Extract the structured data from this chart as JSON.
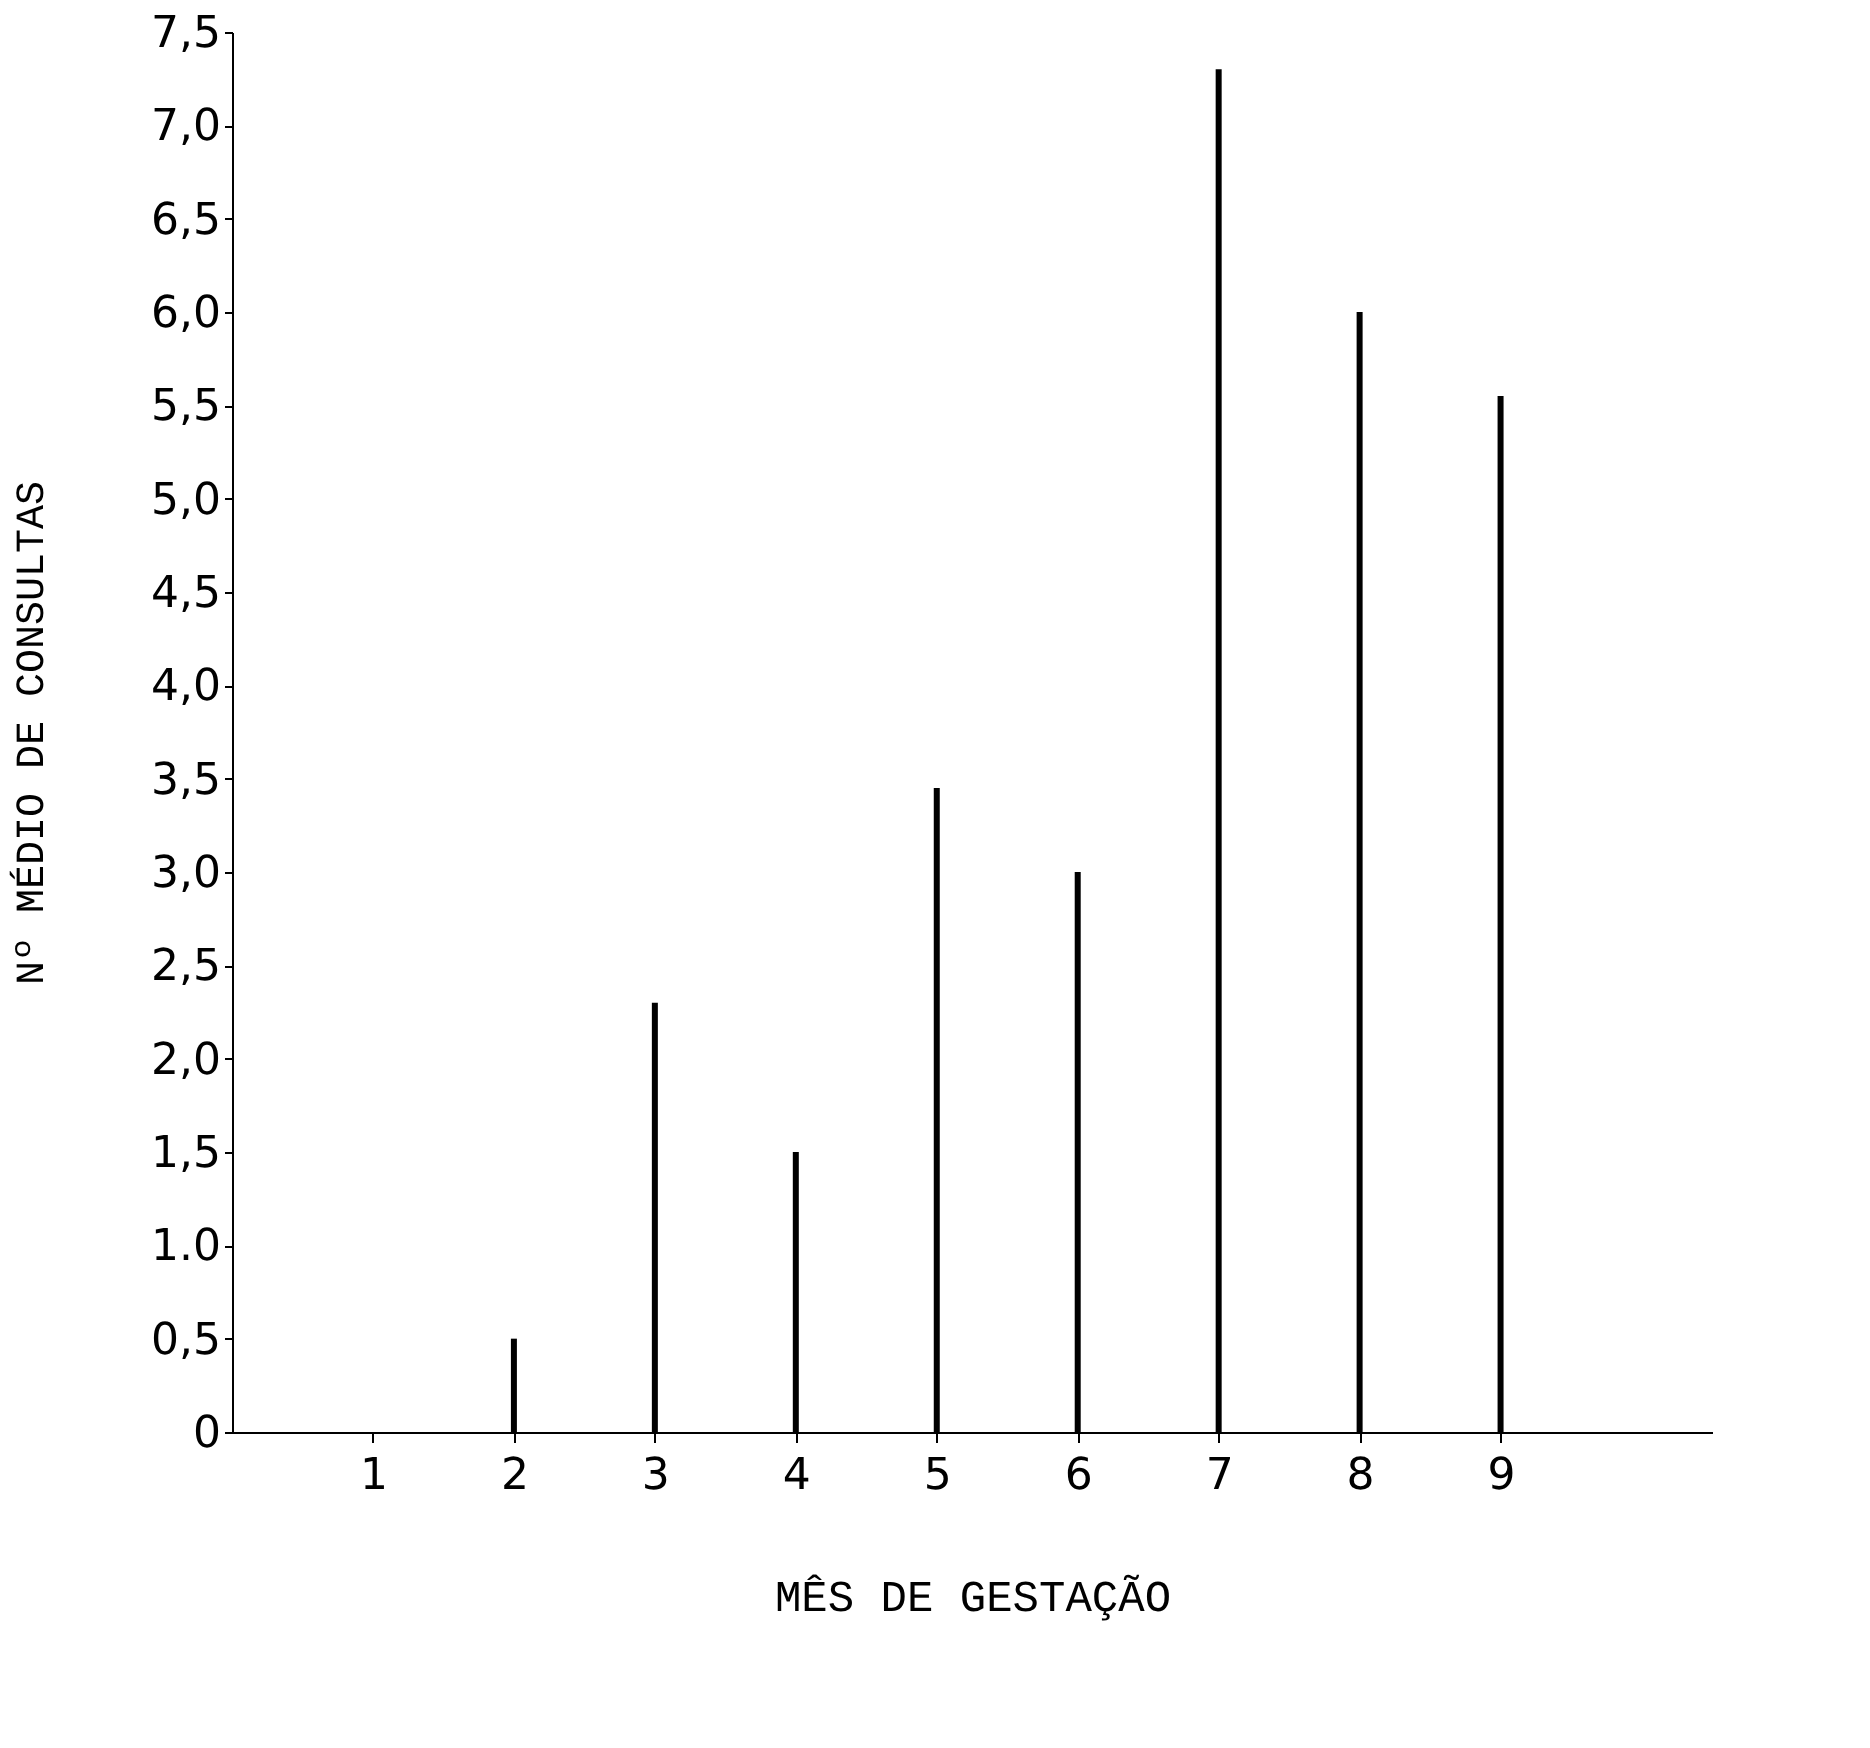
{
  "chart_data": {
    "type": "bar",
    "xlabel": "MÊS DE GESTAÇÃO",
    "ylabel": "Nº MÉDIO DE CONSULTAS",
    "x": [
      1,
      2,
      3,
      4,
      5,
      6,
      7,
      8,
      9
    ],
    "series": [
      {
        "color": "#000000",
        "values": [
          0,
          0.5,
          2.3,
          1.5,
          3.45,
          3.0,
          7.3,
          6.0,
          5.55
        ]
      }
    ],
    "xlim": [
      0,
      10.5
    ],
    "xticks": [
      1,
      2,
      3,
      4,
      5,
      6,
      7,
      8,
      9
    ],
    "ylim": [
      0,
      7.5
    ],
    "yticks": [
      0,
      {
        "value": 0.5,
        "label": "0,5"
      },
      {
        "value": 1.0,
        "label": "1.0"
      },
      {
        "value": 1.5,
        "label": "1,5"
      },
      {
        "value": 2.0,
        "label": "2,0"
      },
      {
        "value": 2.5,
        "label": "2,5"
      },
      {
        "value": 3.0,
        "label": "3,0"
      },
      {
        "value": 3.5,
        "label": "3,5"
      },
      {
        "value": 4.0,
        "label": "4,0"
      },
      {
        "value": 4.5,
        "label": "4,5"
      },
      {
        "value": 5.0,
        "label": "5,0"
      },
      {
        "value": 5.5,
        "label": "5,5"
      },
      {
        "value": 6.0,
        "label": "6,0"
      },
      {
        "value": 6.5,
        "label": "6,5"
      },
      {
        "value": 7.0,
        "label": "7,0"
      },
      {
        "value": 7.5,
        "label": "7,5"
      }
    ],
    "grid": false
  }
}
